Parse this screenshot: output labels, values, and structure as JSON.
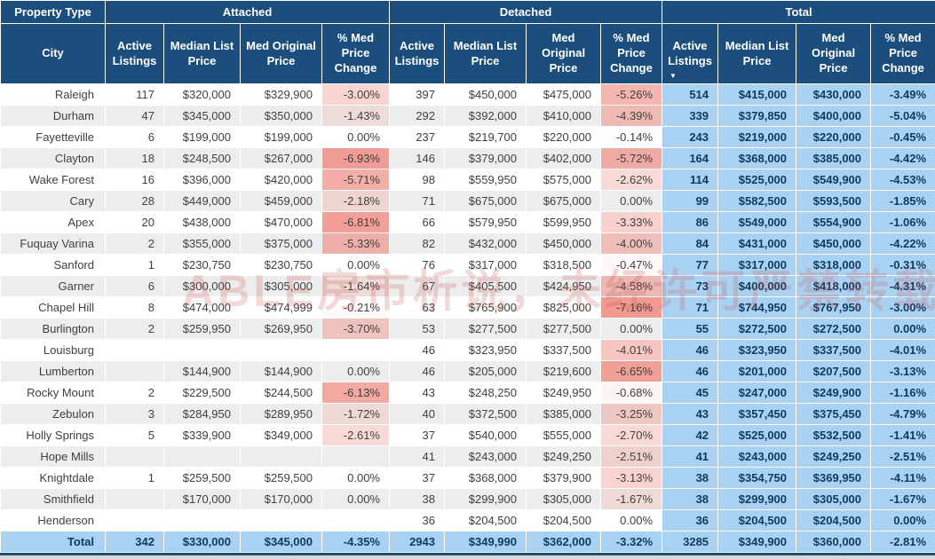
{
  "watermark": {
    "text": "ABLE房市析说，未经许可严禁转载"
  },
  "colors": {
    "header_bg": "#1B4E7C",
    "header_text": "#FFFFFF",
    "total_col_bg": "#A9D2F2",
    "total_text": "#123A60",
    "row_alt_bg": "#EDEDED",
    "body_text": "#404040",
    "negative_max": "#F0988F"
  },
  "chart_data": {
    "type": "table",
    "corner_label": "Property Type",
    "row_dim_label": "City",
    "groups": [
      "Attached",
      "Detached",
      "Total"
    ],
    "column_headers": [
      "Active Listings",
      "Median List Price",
      "Med Original Price",
      "% Med Price Change"
    ],
    "sort": {
      "group": "Total",
      "column": "Active Listings",
      "direction": "desc",
      "icon": "▼"
    },
    "rows": [
      {
        "city": "Raleigh",
        "attached": [
          "117",
          "$320,000",
          "$329,900",
          "-3.00%"
        ],
        "detached": [
          "397",
          "$450,000",
          "$475,000",
          "-5.26%"
        ],
        "total": [
          "514",
          "$415,000",
          "$430,000",
          "-3.49%"
        ]
      },
      {
        "city": "Durham",
        "attached": [
          "47",
          "$345,000",
          "$350,000",
          "-1.43%"
        ],
        "detached": [
          "292",
          "$392,000",
          "$410,000",
          "-4.39%"
        ],
        "total": [
          "339",
          "$379,850",
          "$400,000",
          "-5.04%"
        ]
      },
      {
        "city": "Fayetteville",
        "attached": [
          "6",
          "$199,000",
          "$199,000",
          "0.00%"
        ],
        "detached": [
          "237",
          "$219,700",
          "$220,000",
          "-0.14%"
        ],
        "total": [
          "243",
          "$219,000",
          "$220,000",
          "-0.45%"
        ]
      },
      {
        "city": "Clayton",
        "attached": [
          "18",
          "$248,500",
          "$267,000",
          "-6.93%"
        ],
        "detached": [
          "146",
          "$379,000",
          "$402,000",
          "-5.72%"
        ],
        "total": [
          "164",
          "$368,000",
          "$385,000",
          "-4.42%"
        ]
      },
      {
        "city": "Wake Forest",
        "attached": [
          "16",
          "$396,000",
          "$420,000",
          "-5.71%"
        ],
        "detached": [
          "98",
          "$559,950",
          "$575,000",
          "-2.62%"
        ],
        "total": [
          "114",
          "$525,000",
          "$549,900",
          "-4.53%"
        ]
      },
      {
        "city": "Cary",
        "attached": [
          "28",
          "$449,000",
          "$459,000",
          "-2.18%"
        ],
        "detached": [
          "71",
          "$675,000",
          "$675,000",
          "0.00%"
        ],
        "total": [
          "99",
          "$582,500",
          "$593,500",
          "-1.85%"
        ]
      },
      {
        "city": "Apex",
        "attached": [
          "20",
          "$438,000",
          "$470,000",
          "-6.81%"
        ],
        "detached": [
          "66",
          "$579,950",
          "$599,950",
          "-3.33%"
        ],
        "total": [
          "86",
          "$549,000",
          "$554,900",
          "-1.06%"
        ]
      },
      {
        "city": "Fuquay Varina",
        "attached": [
          "2",
          "$355,000",
          "$375,000",
          "-5.33%"
        ],
        "detached": [
          "82",
          "$432,000",
          "$450,000",
          "-4.00%"
        ],
        "total": [
          "84",
          "$431,000",
          "$450,000",
          "-4.22%"
        ]
      },
      {
        "city": "Sanford",
        "attached": [
          "1",
          "$230,750",
          "$230,750",
          "0.00%"
        ],
        "detached": [
          "76",
          "$317,000",
          "$318,500",
          "-0.47%"
        ],
        "total": [
          "77",
          "$317,000",
          "$318,000",
          "-0.31%"
        ]
      },
      {
        "city": "Garner",
        "attached": [
          "6",
          "$300,000",
          "$305,000",
          "-1.64%"
        ],
        "detached": [
          "67",
          "$405,500",
          "$424,950",
          "-4.58%"
        ],
        "total": [
          "73",
          "$400,000",
          "$418,000",
          "-4.31%"
        ]
      },
      {
        "city": "Chapel Hill",
        "attached": [
          "8",
          "$474,000",
          "$474,999",
          "-0.21%"
        ],
        "detached": [
          "63",
          "$765,900",
          "$825,000",
          "-7.16%"
        ],
        "total": [
          "71",
          "$744,950",
          "$767,950",
          "-3.00%"
        ]
      },
      {
        "city": "Burlington",
        "attached": [
          "2",
          "$259,950",
          "$269,950",
          "-3.70%"
        ],
        "detached": [
          "53",
          "$277,500",
          "$277,500",
          "0.00%"
        ],
        "total": [
          "55",
          "$272,500",
          "$272,500",
          "0.00%"
        ]
      },
      {
        "city": "Louisburg",
        "attached": [
          "",
          "",
          "",
          ""
        ],
        "detached": [
          "46",
          "$323,950",
          "$337,500",
          "-4.01%"
        ],
        "total": [
          "46",
          "$323,950",
          "$337,500",
          "-4.01%"
        ]
      },
      {
        "city": "Lumberton",
        "attached": [
          "",
          "$144,900",
          "$144,900",
          "0.00%"
        ],
        "detached": [
          "46",
          "$205,000",
          "$219,600",
          "-6.65%"
        ],
        "total": [
          "46",
          "$201,000",
          "$207,500",
          "-3.13%"
        ]
      },
      {
        "city": "Rocky Mount",
        "attached": [
          "2",
          "$229,500",
          "$244,500",
          "-6.13%"
        ],
        "detached": [
          "43",
          "$248,250",
          "$249,950",
          "-0.68%"
        ],
        "total": [
          "45",
          "$247,000",
          "$249,900",
          "-1.16%"
        ]
      },
      {
        "city": "Zebulon",
        "attached": [
          "3",
          "$284,950",
          "$289,950",
          "-1.72%"
        ],
        "detached": [
          "40",
          "$372,500",
          "$385,000",
          "-3.25%"
        ],
        "total": [
          "43",
          "$357,450",
          "$375,450",
          "-4.79%"
        ]
      },
      {
        "city": "Holly Springs",
        "attached": [
          "5",
          "$339,900",
          "$349,000",
          "-2.61%"
        ],
        "detached": [
          "37",
          "$540,000",
          "$555,000",
          "-2.70%"
        ],
        "total": [
          "42",
          "$525,000",
          "$532,500",
          "-1.41%"
        ]
      },
      {
        "city": "Hope Mills",
        "attached": [
          "",
          "",
          "",
          ""
        ],
        "detached": [
          "41",
          "$243,000",
          "$249,250",
          "-2.51%"
        ],
        "total": [
          "41",
          "$243,000",
          "$249,250",
          "-2.51%"
        ]
      },
      {
        "city": "Knightdale",
        "attached": [
          "1",
          "$259,500",
          "$259,500",
          "0.00%"
        ],
        "detached": [
          "37",
          "$368,000",
          "$379,900",
          "-3.13%"
        ],
        "total": [
          "38",
          "$354,750",
          "$369,950",
          "-4.11%"
        ]
      },
      {
        "city": "Smithfield",
        "attached": [
          "",
          "$170,000",
          "$170,000",
          "0.00%"
        ],
        "detached": [
          "38",
          "$299,900",
          "$305,000",
          "-1.67%"
        ],
        "total": [
          "38",
          "$299,900",
          "$305,000",
          "-1.67%"
        ]
      },
      {
        "city": "Henderson",
        "attached": [
          "",
          "",
          "",
          ""
        ],
        "detached": [
          "36",
          "$204,500",
          "$204,500",
          "0.00%"
        ],
        "total": [
          "36",
          "$204,500",
          "$204,500",
          "0.00%"
        ]
      }
    ],
    "grand_total": {
      "city": "Total",
      "attached": [
        "342",
        "$330,000",
        "$345,000",
        "-4.35%"
      ],
      "detached": [
        "2943",
        "$349,990",
        "$362,000",
        "-3.32%"
      ],
      "total": [
        "3285",
        "$349,900",
        "$360,000",
        "-2.81%"
      ]
    }
  }
}
